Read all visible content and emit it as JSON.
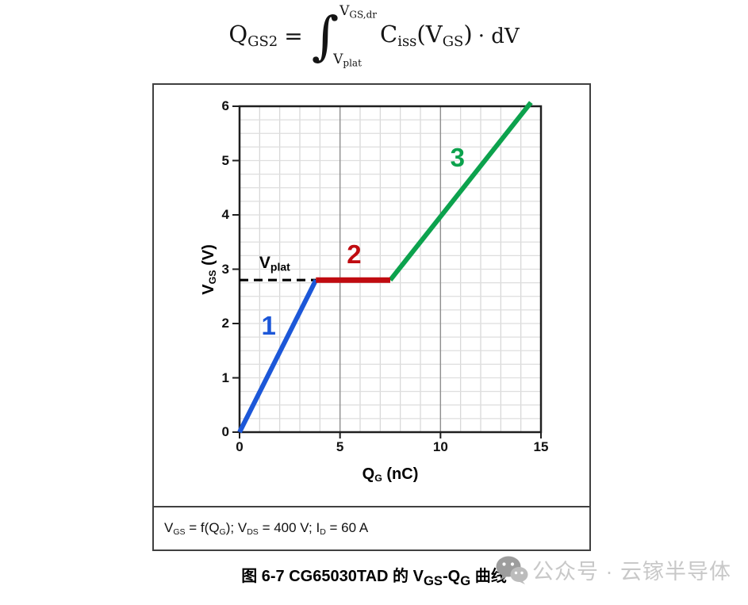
{
  "formula": {
    "lhs_main": "Q",
    "lhs_sub": "GS2",
    "equals": "=",
    "integral": "∫",
    "upper_main": "V",
    "upper_sub": "GS,dr",
    "lower_main": "V",
    "lower_sub": "plat",
    "integrand_main": "C",
    "integrand_sub": "iss",
    "arg_open": "(V",
    "arg_sub": "GS",
    "arg_close": ")",
    "dot_dv": "· dV"
  },
  "chart_data": {
    "type": "line",
    "title": "",
    "xlabel": "QG (nC)",
    "ylabel": "VGS (V)",
    "xlim": [
      0,
      15
    ],
    "ylim": [
      0,
      6
    ],
    "x_ticks": [
      "0",
      "5",
      "10",
      "15"
    ],
    "x_tick_values": [
      0,
      5,
      10,
      15
    ],
    "y_ticks": [
      "0",
      "1",
      "2",
      "3",
      "4",
      "5",
      "6"
    ],
    "y_tick_values": [
      0,
      1,
      2,
      3,
      4,
      5,
      6
    ],
    "x_minor_step": 1,
    "y_minor_step": 0.25,
    "x_major_gridlines": [
      5,
      10
    ],
    "grid": true,
    "legend_position": "none",
    "series": [
      {
        "name": "1",
        "color": "#1c57d8",
        "x": [
          0,
          3.8
        ],
        "y": [
          0,
          2.8
        ]
      },
      {
        "name": "2",
        "color": "#c00b10",
        "x": [
          3.8,
          7.5
        ],
        "y": [
          2.8,
          2.8
        ]
      },
      {
        "name": "3",
        "color": "#0ca24d",
        "x": [
          7.5,
          14.5
        ],
        "y": [
          2.8,
          6.07
        ]
      }
    ],
    "plateau_voltage_V": 2.8,
    "annotations": {
      "dashed_line": {
        "y": 2.8,
        "x_from": 0,
        "x_to": 3.8,
        "color": "#000000"
      },
      "segment_labels": [
        {
          "text": "1",
          "x": 1.45,
          "y": 1.95,
          "color": "#1c57d8"
        },
        {
          "text": "2",
          "x": 5.7,
          "y": 3.27,
          "color": "#c00b10"
        },
        {
          "text": "3",
          "x": 10.85,
          "y": 5.05,
          "color": "#0ca24d"
        }
      ],
      "vplat_label": {
        "main": "V",
        "sub": "plat",
        "x": 1.75,
        "y": 3.12
      }
    }
  },
  "axis": {
    "y_label_main": "V",
    "y_label_sub": "GS",
    "y_label_rest": " (V)",
    "x_label_main": "Q",
    "x_label_sub": "G",
    "x_label_rest": " (nC)"
  },
  "conditions": {
    "p1": "V",
    "s1": "GS",
    "p2": " = f(Q",
    "s2": "G",
    "p3": "); V",
    "s3": "DS",
    "p4": " = 400 V; I",
    "s4": "D",
    "p5": " = 60 A"
  },
  "figure_caption": {
    "p1": "图 6-7 CG65030TAD 的 V",
    "s1": "GS",
    "p2": "-Q",
    "s2": "G",
    "p3": " 曲线"
  },
  "watermark": {
    "icon": "wechat-icon",
    "text": "公众号 · 云镓半导体"
  },
  "colors": {
    "segment1_blue": "#1c57d8",
    "segment2_red": "#c00b10",
    "segment3_green": "#0ca24d",
    "grid_minor": "#d6d6d6",
    "grid_major": "#8f8f8f",
    "plot_border": "#1f1f1f",
    "watermark_gray": "#c8c8c8"
  }
}
